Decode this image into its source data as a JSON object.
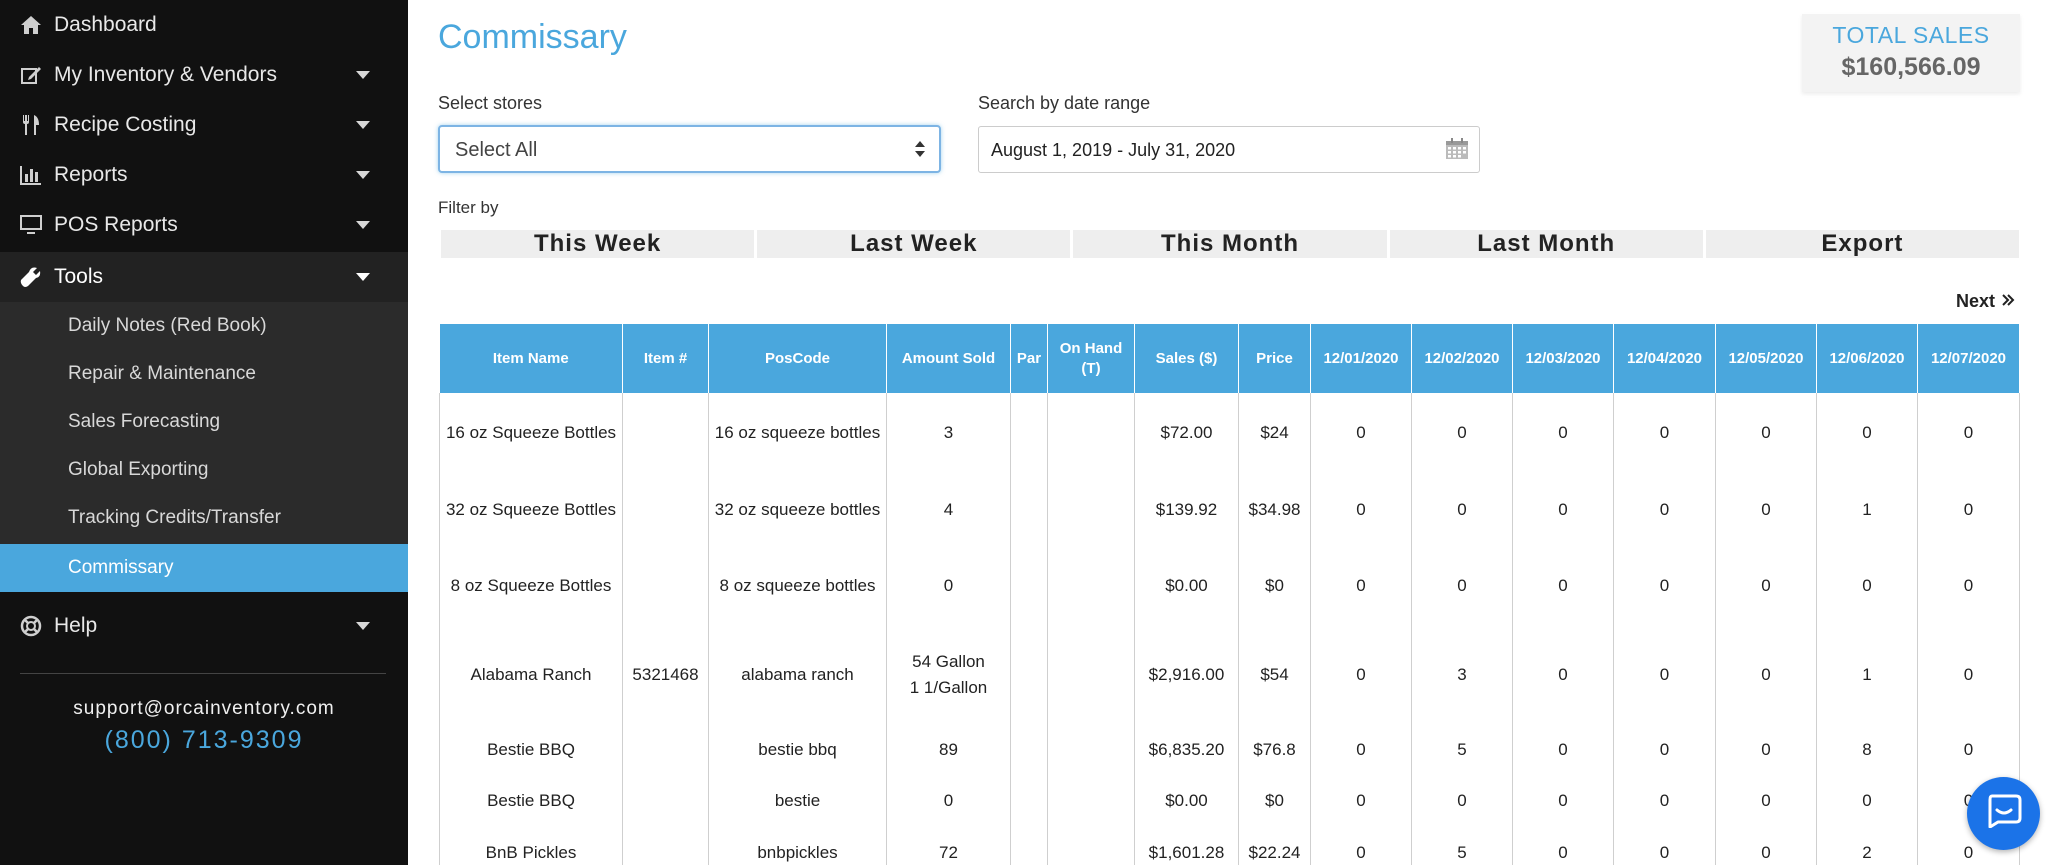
{
  "sidebar": {
    "nav": [
      {
        "label": "Dashboard",
        "icon": "home-icon",
        "has_caret": false
      },
      {
        "label": "My Inventory & Vendors",
        "icon": "edit-icon",
        "has_caret": true
      },
      {
        "label": "Recipe Costing",
        "icon": "utensils-icon",
        "has_caret": true
      },
      {
        "label": "Reports",
        "icon": "bar-chart-icon",
        "has_caret": true
      },
      {
        "label": "POS Reports",
        "icon": "monitor-icon",
        "has_caret": true
      },
      {
        "label": "Tools",
        "icon": "wrench-icon",
        "has_caret": true
      },
      {
        "label": "Help",
        "icon": "life-ring-icon",
        "has_caret": true
      }
    ],
    "tools_sub": [
      {
        "label": "Daily Notes (Red Book)"
      },
      {
        "label": "Repair & Maintenance"
      },
      {
        "label": "Sales Forecasting"
      },
      {
        "label": "Global Exporting"
      },
      {
        "label": "Tracking Credits/Transfer"
      },
      {
        "label": "Commissary",
        "active": true
      }
    ],
    "support_email": "support@orcainventory.com",
    "support_phone": "(800) 713-9309"
  },
  "main": {
    "title": "Commissary",
    "total_sales_label": "TOTAL SALES",
    "total_sales_value": "$160,566.09",
    "select_stores_label": "Select stores",
    "select_stores_value": "Select All",
    "date_range_label": "Search by date range",
    "date_range_value": "August 1, 2019 - July 31, 2020",
    "filter_label": "Filter by",
    "filters": [
      "This Week",
      "Last Week",
      "This Month",
      "Last Month",
      "Export"
    ],
    "next_label": "Next"
  },
  "table": {
    "headers": [
      "Item Name",
      "Item #",
      "PosCode",
      "Amount Sold",
      "Par",
      "On Hand (T)",
      "Sales ($)",
      "Price",
      "12/01/2020",
      "12/02/2020",
      "12/03/2020",
      "12/04/2020",
      "12/05/2020",
      "12/06/2020",
      "12/07/2020"
    ],
    "rows": [
      [
        "16 oz Squeeze Bottles",
        "",
        "16 oz squeeze bottles",
        "3",
        "",
        "",
        "$72.00",
        "$24",
        "0",
        "0",
        "0",
        "0",
        "0",
        "0",
        "0"
      ],
      [
        "32 oz Squeeze Bottles",
        "",
        "32 oz squeeze bottles",
        "4",
        "",
        "",
        "$139.92",
        "$34.98",
        "0",
        "0",
        "0",
        "0",
        "0",
        "1",
        "0"
      ],
      [
        "8 oz Squeeze Bottles",
        "",
        "8 oz squeeze bottles",
        "0",
        "",
        "",
        "$0.00",
        "$0",
        "0",
        "0",
        "0",
        "0",
        "0",
        "0",
        "0"
      ],
      [
        "Alabama Ranch",
        "5321468",
        "alabama ranch",
        "54 Gallon 1 1/Gallon",
        "",
        "",
        "$2,916.00",
        "$54",
        "0",
        "3",
        "0",
        "0",
        "0",
        "1",
        "0"
      ],
      [
        "Bestie BBQ",
        "",
        "bestie bbq",
        "89",
        "",
        "",
        "$6,835.20",
        "$76.8",
        "0",
        "5",
        "0",
        "0",
        "0",
        "8",
        "0"
      ],
      [
        "Bestie BBQ",
        "",
        "bestie",
        "0",
        "",
        "",
        "$0.00",
        "$0",
        "0",
        "0",
        "0",
        "0",
        "0",
        "0",
        "0"
      ],
      [
        "BnB Pickles",
        "",
        "bnbpickles",
        "72",
        "",
        "",
        "$1,601.28",
        "$22.24",
        "0",
        "5",
        "0",
        "0",
        "0",
        "2",
        "0"
      ]
    ]
  },
  "colors": {
    "accent": "#4aa7dd",
    "sidebar_bg": "#111111",
    "chat_button": "#1b73e8"
  }
}
